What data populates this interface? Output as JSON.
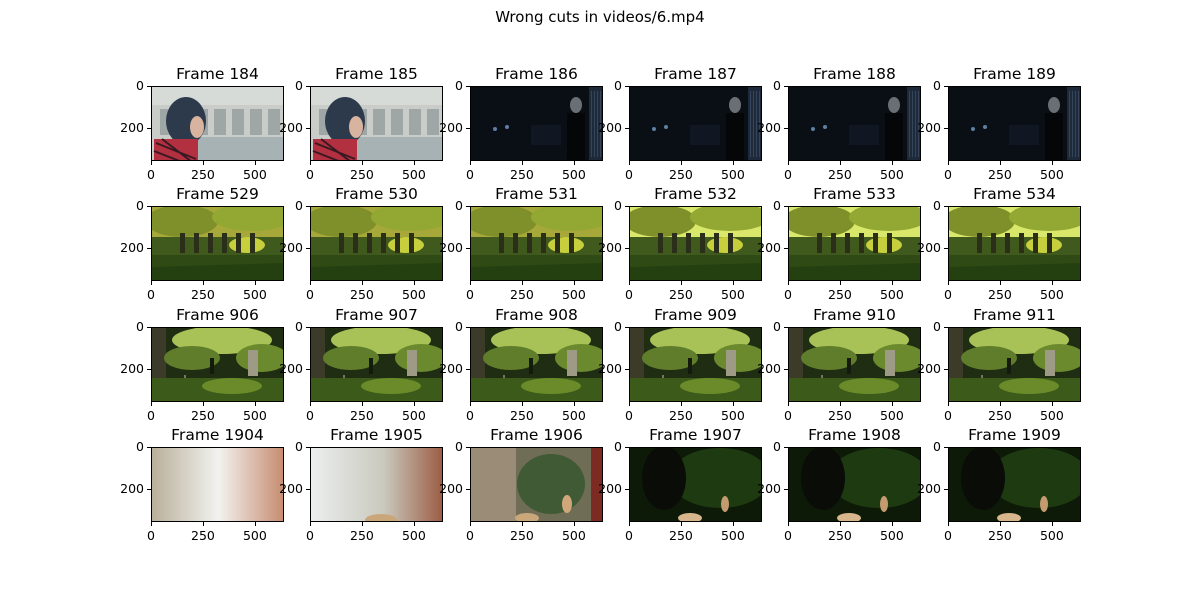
{
  "chart_data": {
    "type": "image-grid",
    "title": "Wrong cuts in videos/6.mp4",
    "x_ticks": [
      "0",
      "250",
      "500"
    ],
    "y_ticks": [
      "0",
      "200"
    ],
    "x_tick_values": [
      0,
      250,
      500
    ],
    "y_tick_values": [
      0,
      200
    ],
    "image_width": 640,
    "image_height": 360,
    "rows": [
      {
        "scene": "hooded-figure-to-dark-gate",
        "frames": [
          {
            "label": "Frame 184",
            "look": "hood"
          },
          {
            "label": "Frame 185",
            "look": "hood"
          },
          {
            "label": "Frame 186",
            "look": "dark"
          },
          {
            "label": "Frame 187",
            "look": "dark"
          },
          {
            "label": "Frame 188",
            "look": "dark"
          },
          {
            "label": "Frame 189",
            "look": "dark"
          }
        ]
      },
      {
        "scene": "sunlit-cemetery",
        "frames": [
          {
            "label": "Frame 529",
            "look": "cemetery-yellow"
          },
          {
            "label": "Frame 530",
            "look": "cemetery-yellow"
          },
          {
            "label": "Frame 531",
            "look": "cemetery-yellow"
          },
          {
            "label": "Frame 532",
            "look": "cemetery-bright"
          },
          {
            "label": "Frame 533",
            "look": "cemetery-bright"
          },
          {
            "label": "Frame 534",
            "look": "cemetery-bright"
          }
        ]
      },
      {
        "scene": "shaded-cemetery-path",
        "frames": [
          {
            "label": "Frame 906",
            "look": "graves-green"
          },
          {
            "label": "Frame 907",
            "look": "graves-green"
          },
          {
            "label": "Frame 908",
            "look": "graves-green"
          },
          {
            "label": "Frame 909",
            "look": "graves-green"
          },
          {
            "label": "Frame 910",
            "look": "graves-green"
          },
          {
            "label": "Frame 911",
            "look": "graves-green"
          }
        ]
      },
      {
        "scene": "light-leak-to-dark-forest",
        "frames": [
          {
            "label": "Frame 1904",
            "look": "flash1"
          },
          {
            "label": "Frame 1905",
            "look": "flash2"
          },
          {
            "label": "Frame 1906",
            "look": "flash3"
          },
          {
            "label": "Frame 1907",
            "look": "forest-dark"
          },
          {
            "label": "Frame 1908",
            "look": "forest-dark"
          },
          {
            "label": "Frame 1909",
            "look": "forest-dark"
          }
        ]
      }
    ]
  }
}
